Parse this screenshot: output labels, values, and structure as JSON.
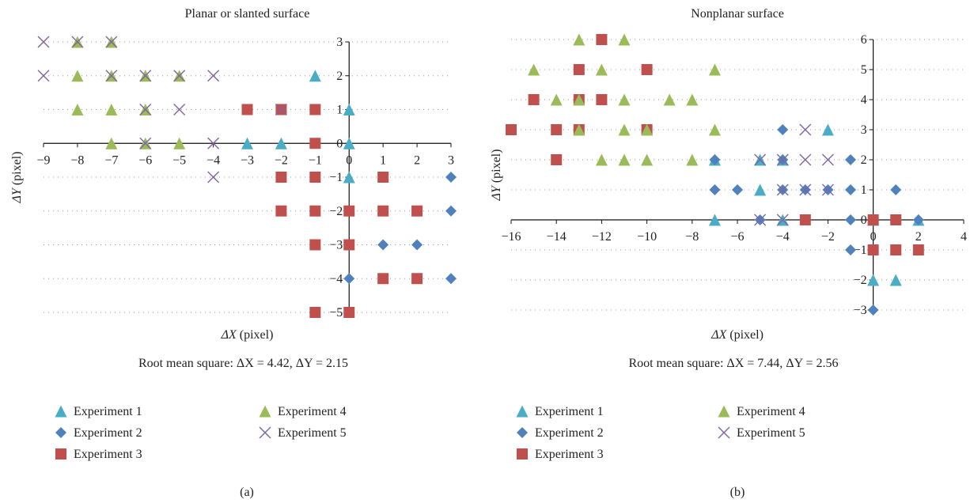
{
  "chart_data": [
    {
      "type": "scatter",
      "panel_label": "(a)",
      "title": "Planar or slanted surface",
      "xlabel_prefix": "ΔX",
      "xlabel_suffix": "(pixel)",
      "ylabel_prefix": "ΔY",
      "ylabel_suffix": "(pixel)",
      "xlim": [
        -9,
        3
      ],
      "ylim": [
        -5,
        3
      ],
      "xticks": [
        -9,
        -8,
        -7,
        -6,
        -5,
        -4,
        -3,
        -2,
        -1,
        0,
        1,
        2,
        3
      ],
      "yticks": [
        -5,
        -4,
        -3,
        -2,
        -1,
        0,
        1,
        2,
        3
      ],
      "grid": "dotted horizontal",
      "legend_position": "bottom",
      "rms_text": "Root mean square: ΔX = 4.42, ΔY = 2.15",
      "series": [
        {
          "name": "Experiment 1",
          "marker": "triangle",
          "color": "#4bacc6",
          "points": [
            [
              -1,
              2
            ],
            [
              0,
              1
            ],
            [
              0,
              0
            ],
            [
              -3,
              0
            ],
            [
              -2,
              0
            ],
            [
              0,
              -1
            ]
          ]
        },
        {
          "name": "Experiment 2",
          "marker": "diamond",
          "color": "#4f81bd",
          "points": [
            [
              3,
              -1
            ],
            [
              3,
              -2
            ],
            [
              1,
              -3
            ],
            [
              2,
              -3
            ],
            [
              0,
              -4
            ],
            [
              3,
              -4
            ]
          ]
        },
        {
          "name": "Experiment 3",
          "marker": "square",
          "color": "#c0504d",
          "points": [
            [
              -3,
              1
            ],
            [
              -2,
              1
            ],
            [
              -1,
              1
            ],
            [
              -1,
              0
            ],
            [
              -2,
              -1
            ],
            [
              -1,
              -1
            ],
            [
              1,
              -1
            ],
            [
              -2,
              -2
            ],
            [
              -1,
              -2
            ],
            [
              0,
              -2
            ],
            [
              1,
              -2
            ],
            [
              2,
              -2
            ],
            [
              -1,
              -3
            ],
            [
              0,
              -3
            ],
            [
              1,
              -4
            ],
            [
              2,
              -4
            ],
            [
              -1,
              -5
            ],
            [
              0,
              -5
            ]
          ]
        },
        {
          "name": "Experiment 4",
          "marker": "triangle",
          "color": "#9bbb59",
          "points": [
            [
              -8,
              3
            ],
            [
              -7,
              3
            ],
            [
              -8,
              2
            ],
            [
              -7,
              2
            ],
            [
              -6,
              2
            ],
            [
              -5,
              2
            ],
            [
              -8,
              1
            ],
            [
              -7,
              1
            ],
            [
              -6,
              1
            ],
            [
              -7,
              0
            ],
            [
              -6,
              0
            ],
            [
              -5,
              0
            ]
          ]
        },
        {
          "name": "Experiment 5",
          "marker": "x",
          "color": "#8064a2",
          "points": [
            [
              -9,
              3
            ],
            [
              -8,
              3
            ],
            [
              -7,
              3
            ],
            [
              -9,
              2
            ],
            [
              -7,
              2
            ],
            [
              -6,
              2
            ],
            [
              -5,
              2
            ],
            [
              -4,
              2
            ],
            [
              -6,
              1
            ],
            [
              -5,
              1
            ],
            [
              -2,
              1
            ],
            [
              -6,
              0
            ],
            [
              -4,
              0
            ],
            [
              -4,
              -1
            ]
          ]
        }
      ]
    },
    {
      "type": "scatter",
      "panel_label": "(b)",
      "title": "Nonplanar surface",
      "xlabel_prefix": "ΔX",
      "xlabel_suffix": "(pixel)",
      "ylabel_prefix": "ΔY",
      "ylabel_suffix": "(pixel)",
      "xlim": [
        -16,
        4
      ],
      "ylim": [
        -3,
        6
      ],
      "xticks": [
        -16,
        -14,
        -12,
        -10,
        -8,
        -6,
        -4,
        -2,
        0,
        2,
        4
      ],
      "yticks": [
        -3,
        -2,
        -1,
        0,
        1,
        2,
        3,
        4,
        5,
        6
      ],
      "grid": "dotted horizontal",
      "legend_position": "bottom",
      "rms_text": "Root mean square: ΔX = 7.44, ΔY = 2.56",
      "series": [
        {
          "name": "Experiment 1",
          "marker": "triangle",
          "color": "#4bacc6",
          "points": [
            [
              -2,
              3
            ],
            [
              -7,
              2
            ],
            [
              -5,
              2
            ],
            [
              -4,
              2
            ],
            [
              -5,
              1
            ],
            [
              -7,
              0
            ],
            [
              -4,
              0
            ],
            [
              0,
              0
            ],
            [
              2,
              0
            ],
            [
              0,
              -2
            ],
            [
              1,
              -2
            ]
          ]
        },
        {
          "name": "Experiment 2",
          "marker": "diamond",
          "color": "#4f81bd",
          "points": [
            [
              -4,
              3
            ],
            [
              -7,
              2
            ],
            [
              -4,
              2
            ],
            [
              -1,
              2
            ],
            [
              -7,
              1
            ],
            [
              -6,
              1
            ],
            [
              -4,
              1
            ],
            [
              -3,
              1
            ],
            [
              -2,
              1
            ],
            [
              -1,
              1
            ],
            [
              1,
              1
            ],
            [
              -5,
              0
            ],
            [
              -1,
              0
            ],
            [
              2,
              0
            ],
            [
              -1,
              -1
            ],
            [
              0,
              -3
            ]
          ]
        },
        {
          "name": "Experiment 3",
          "marker": "square",
          "color": "#c0504d",
          "points": [
            [
              -12,
              6
            ],
            [
              -13,
              5
            ],
            [
              -10,
              5
            ],
            [
              -15,
              4
            ],
            [
              -13,
              4
            ],
            [
              -12,
              4
            ],
            [
              -16,
              3
            ],
            [
              -14,
              3
            ],
            [
              -13,
              3
            ],
            [
              -10,
              3
            ],
            [
              -14,
              2
            ],
            [
              -3,
              0
            ],
            [
              0,
              0
            ],
            [
              1,
              0
            ],
            [
              0,
              -1
            ],
            [
              1,
              -1
            ],
            [
              2,
              -1
            ]
          ]
        },
        {
          "name": "Experiment 4",
          "marker": "triangle",
          "color": "#9bbb59",
          "points": [
            [
              -13,
              6
            ],
            [
              -11,
              6
            ],
            [
              -15,
              5
            ],
            [
              -12,
              5
            ],
            [
              -7,
              5
            ],
            [
              -14,
              4
            ],
            [
              -13,
              4
            ],
            [
              -11,
              4
            ],
            [
              -9,
              4
            ],
            [
              -8,
              4
            ],
            [
              -13,
              3
            ],
            [
              -11,
              3
            ],
            [
              -10,
              3
            ],
            [
              -7,
              3
            ],
            [
              -12,
              2
            ],
            [
              -11,
              2
            ],
            [
              -10,
              2
            ],
            [
              -8,
              2
            ]
          ]
        },
        {
          "name": "Experiment 5",
          "marker": "x",
          "color": "#8064a2",
          "points": [
            [
              -3,
              3
            ],
            [
              -5,
              2
            ],
            [
              -4,
              2
            ],
            [
              -3,
              2
            ],
            [
              -2,
              2
            ],
            [
              -4,
              1
            ],
            [
              -3,
              1
            ],
            [
              -2,
              1
            ],
            [
              -5,
              0
            ],
            [
              -4,
              0
            ]
          ]
        }
      ]
    }
  ]
}
